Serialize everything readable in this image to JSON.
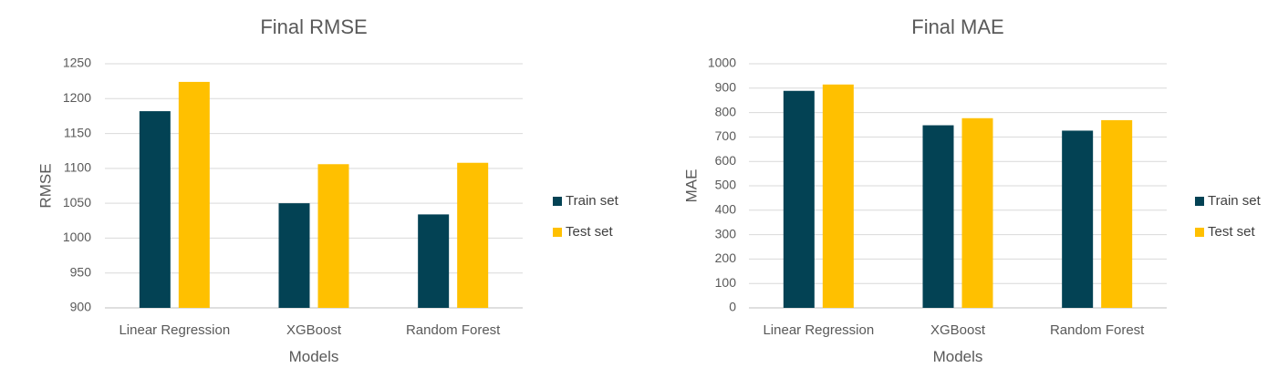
{
  "chart_data": [
    {
      "type": "bar",
      "title": "Final RMSE",
      "xlabel": "Models",
      "ylabel": "RMSE",
      "categories": [
        "Linear Regression",
        "XGBoost",
        "Random Forest"
      ],
      "series": [
        {
          "name": "Train set",
          "values": [
            1182,
            1050,
            1034
          ],
          "color": "#034254"
        },
        {
          "name": "Test set",
          "values": [
            1224,
            1106,
            1108
          ],
          "color": "#FFC000"
        }
      ],
      "ylim": [
        900,
        1250
      ],
      "yticks": [
        "900",
        "950",
        "1000",
        "1050",
        "1100",
        "1150",
        "1200",
        "1250"
      ],
      "grid": true,
      "legend": "right"
    },
    {
      "type": "bar",
      "title": "Final MAE",
      "xlabel": "Models",
      "ylabel": "MAE",
      "categories": [
        "Linear Regression",
        "XGBoost",
        "Random Forest"
      ],
      "series": [
        {
          "name": "Train set",
          "values": [
            889,
            748,
            726
          ],
          "color": "#034254"
        },
        {
          "name": "Test set",
          "values": [
            915,
            777,
            769
          ],
          "color": "#FFC000"
        }
      ],
      "ylim": [
        0,
        1000
      ],
      "yticks": [
        "0",
        "100",
        "200",
        "300",
        "400",
        "500",
        "600",
        "700",
        "800",
        "900",
        "1000"
      ],
      "grid": true,
      "legend": "right"
    }
  ]
}
